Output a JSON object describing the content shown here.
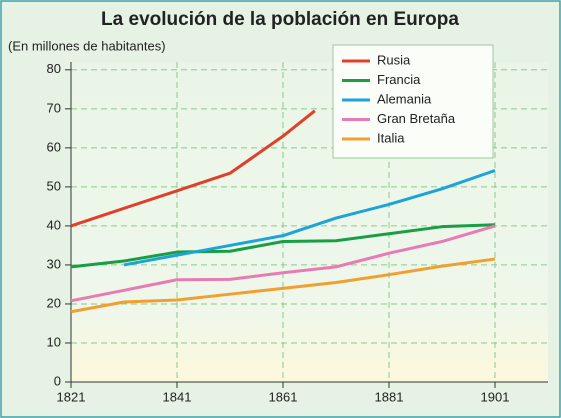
{
  "chart_data": {
    "type": "line",
    "title": "La evolución de la población en Europa",
    "subtitle": "(En millones de habitantes)",
    "xlim": [
      1821,
      1911
    ],
    "xticks": [
      1821,
      1841,
      1861,
      1881,
      1901
    ],
    "ylim": [
      0,
      82
    ],
    "yticks": [
      0,
      10,
      20,
      30,
      40,
      50,
      60,
      70,
      80
    ],
    "grid": true,
    "legend": "upper right",
    "series": [
      {
        "name": "Rusia",
        "color": "#e0402a",
        "x": [
          1821,
          1831,
          1841,
          1851,
          1861,
          1867
        ],
        "values": [
          40,
          44.5,
          49,
          53.5,
          63,
          69.5
        ]
      },
      {
        "name": "Francia",
        "color": "#1a9e45",
        "x": [
          1821,
          1831,
          1841,
          1851,
          1861,
          1871,
          1881,
          1891,
          1901
        ],
        "values": [
          29.5,
          31,
          33.3,
          33.5,
          36,
          36.2,
          38,
          39.8,
          40.3
        ]
      },
      {
        "name": "Alemania",
        "color": "#1ea3d8",
        "x": [
          1831,
          1841,
          1851,
          1861,
          1871,
          1881,
          1891,
          1901
        ],
        "values": [
          30,
          32.5,
          35,
          37.5,
          42,
          45.5,
          49.5,
          54.2
        ]
      },
      {
        "name": "Gran Bretaña",
        "color": "#e87bb4",
        "x": [
          1821,
          1831,
          1841,
          1851,
          1861,
          1871,
          1881,
          1891,
          1901
        ],
        "values": [
          20.8,
          23.5,
          26.2,
          26.3,
          28,
          29.5,
          33,
          36,
          40
        ]
      },
      {
        "name": "Italia",
        "color": "#f0a030",
        "x": [
          1821,
          1831,
          1841,
          1851,
          1861,
          1871,
          1881,
          1891,
          1901
        ],
        "values": [
          18,
          20.5,
          21,
          22.5,
          24,
          25.5,
          27.5,
          29.7,
          31.5
        ]
      }
    ]
  }
}
